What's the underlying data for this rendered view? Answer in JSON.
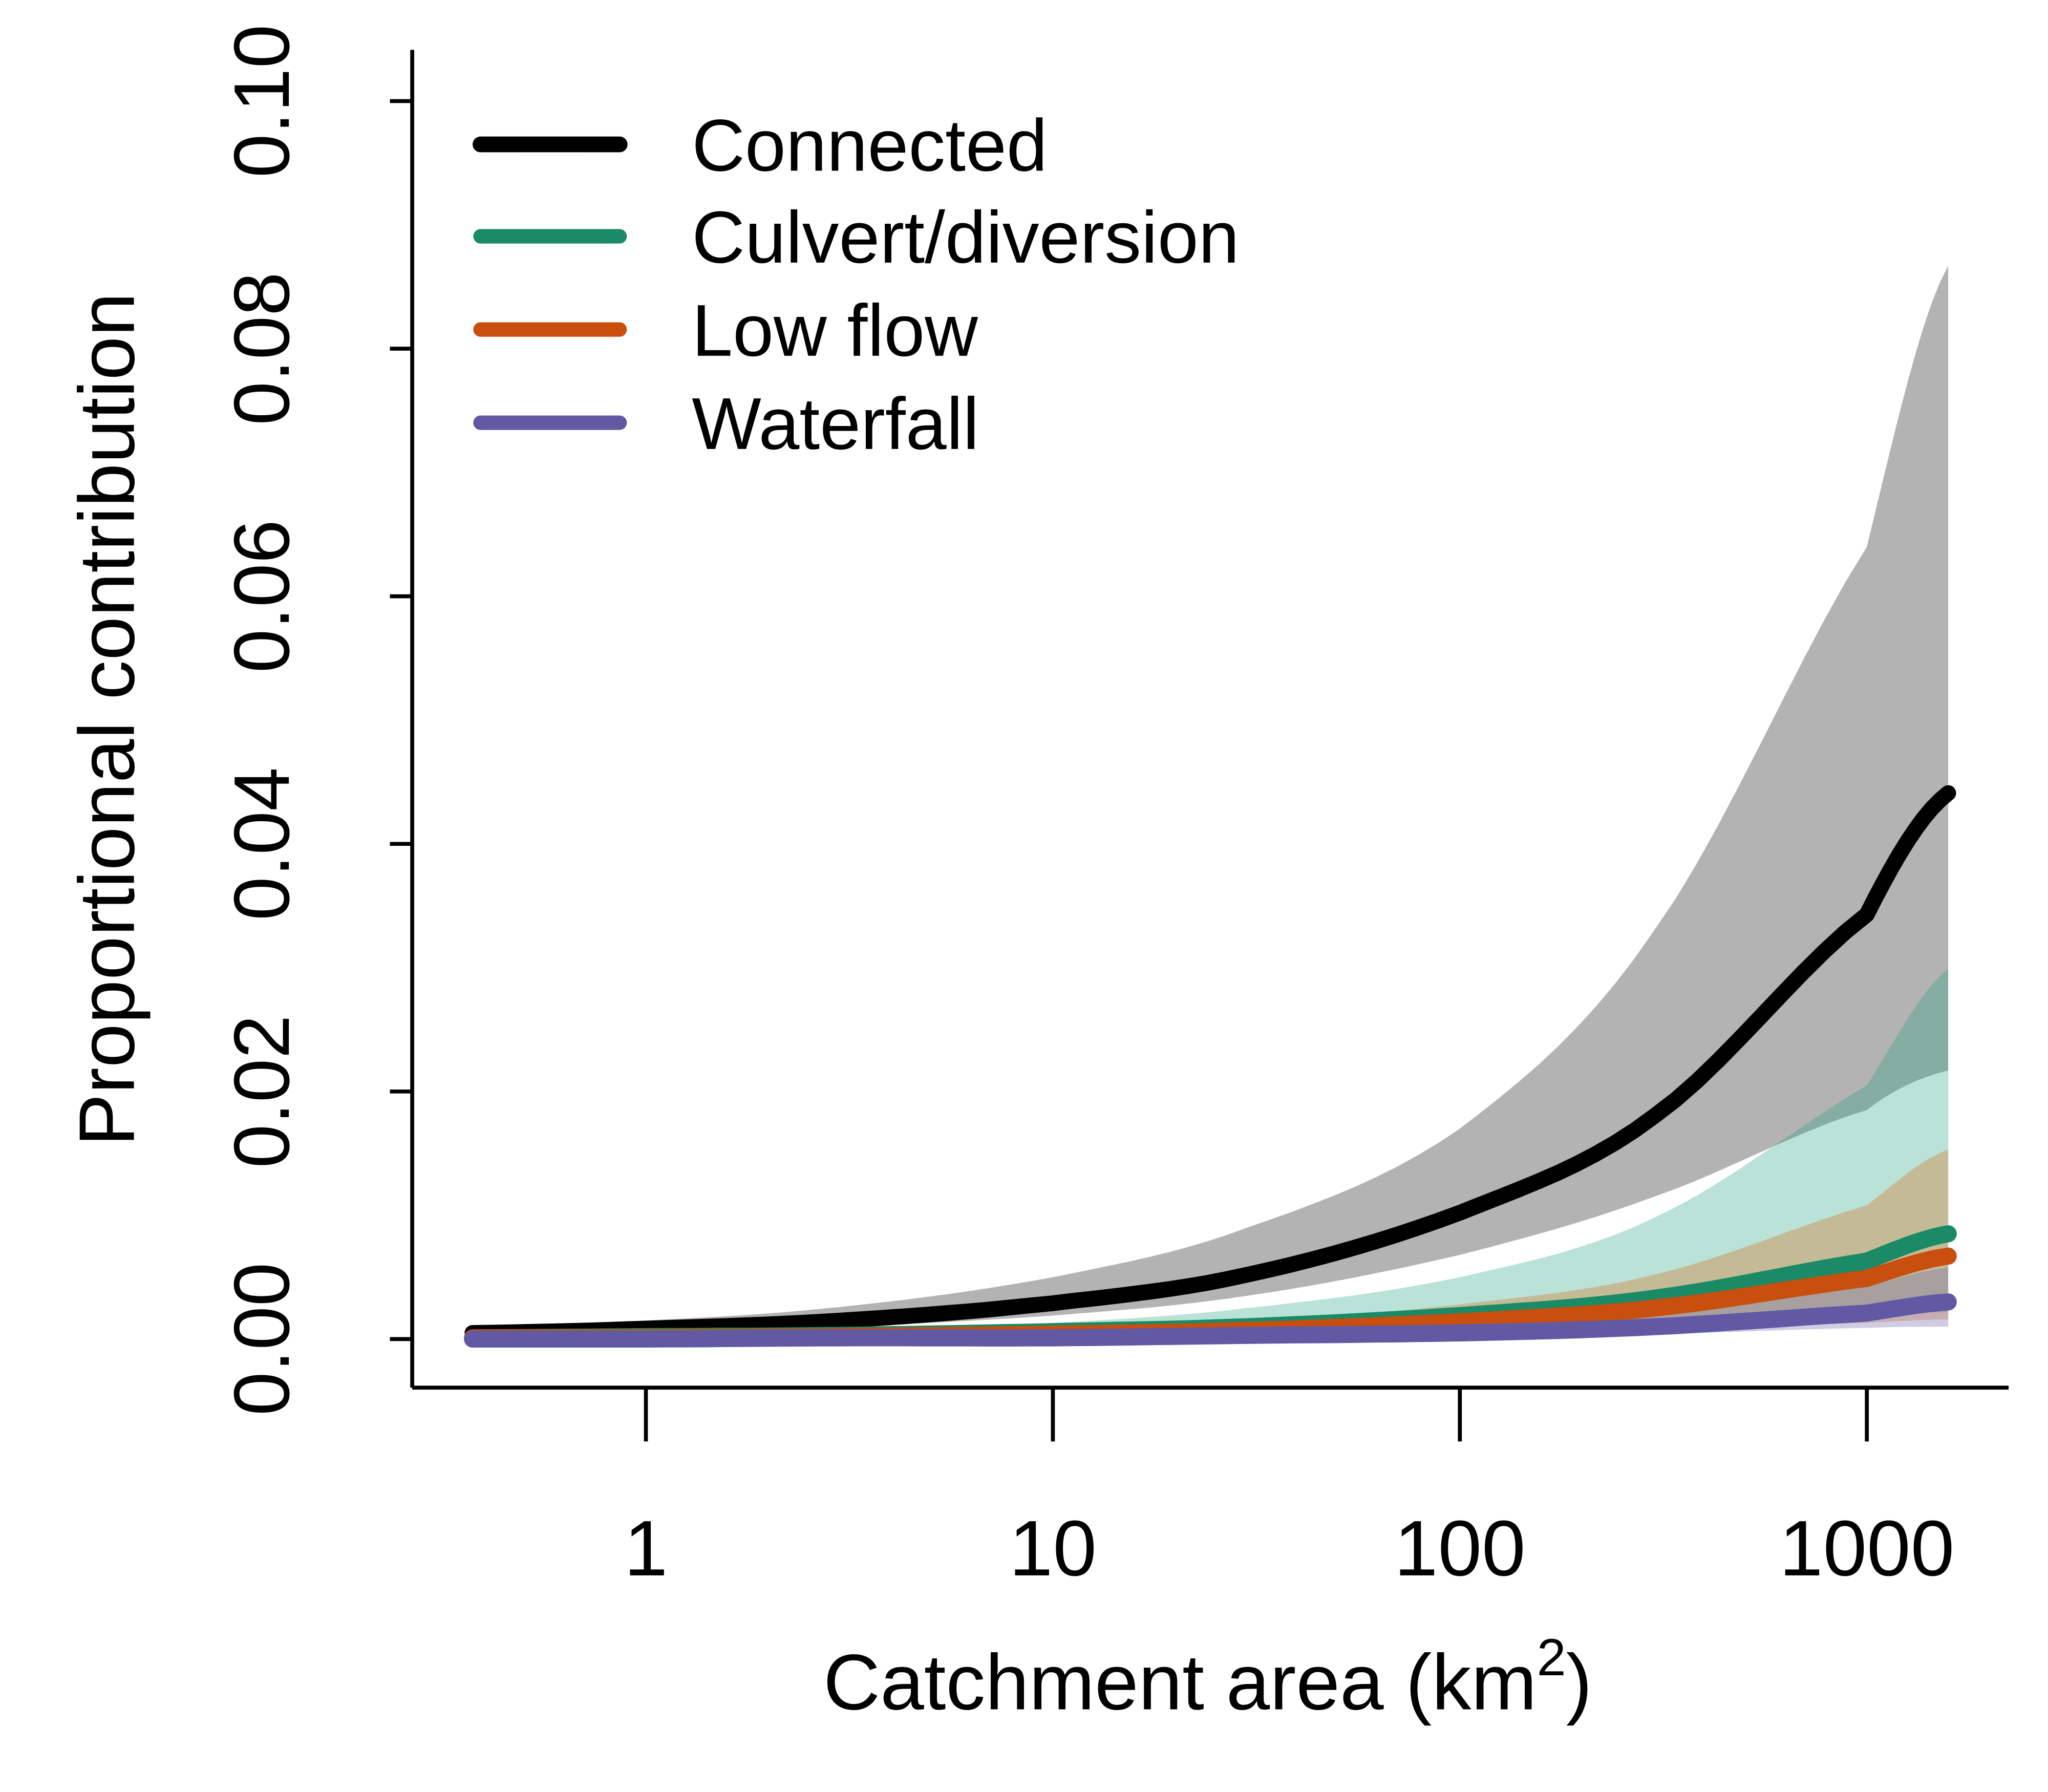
{
  "chart_data": {
    "type": "line",
    "title": "",
    "xlabel": "Catchment area (km",
    "xlabel_sup": "2",
    "xlabel_end": ")",
    "ylabel": "Proportional contribution",
    "xscale": "log",
    "xlim": [
      0.375,
      1585
    ],
    "ylim": [
      0,
      0.1
    ],
    "x_ticks": [
      1,
      10,
      100,
      1000
    ],
    "x_tick_labels": [
      "1",
      "10",
      "100",
      "1000"
    ],
    "y_ticks": [
      0,
      0.02,
      0.04,
      0.06,
      0.08,
      0.1
    ],
    "y_tick_labels": [
      "0.00",
      "0.02",
      "0.04",
      "0.06",
      "0.08",
      "0.10"
    ],
    "grid": false,
    "legend_position": "top-left",
    "x": [
      0.375,
      1,
      3,
      10,
      30,
      100,
      300,
      1000,
      1585
    ],
    "series": [
      {
        "name": "Connected",
        "color": "#000000",
        "band_color": "#b3b3b3",
        "band_opacity": 1,
        "values": [
          0.0005,
          0.00085,
          0.0015,
          0.0029,
          0.0052,
          0.0102,
          0.018,
          0.0343,
          0.0441
        ],
        "upper": [
          0.001,
          0.0015,
          0.0026,
          0.005,
          0.009,
          0.017,
          0.033,
          0.064,
          0.0867
        ],
        "lower": [
          0.0003,
          0.0005,
          0.001,
          0.0019,
          0.0035,
          0.0068,
          0.0115,
          0.0185,
          0.0217
        ]
      },
      {
        "name": "Culvert/diversion",
        "color": "#1b8a66",
        "band_color": "#1b9e77",
        "band_opacity": 0.3,
        "values": [
          0.0001,
          0.0002,
          0.0003,
          0.0006,
          0.001,
          0.0019,
          0.0033,
          0.0063,
          0.0085
        ],
        "upper": [
          0.0002,
          0.0004,
          0.0007,
          0.0013,
          0.0025,
          0.005,
          0.0098,
          0.0205,
          0.0299
        ],
        "lower": [
          0,
          0.0001,
          0.0001,
          0.0002,
          0.0004,
          0.0007,
          0.0011,
          0.0018,
          0.0022
        ]
      },
      {
        "name": "Low flow",
        "color": "#c94f0e",
        "band_color": "#d95f02",
        "band_opacity": 0.3,
        "values": [
          0.0001,
          0.0001,
          0.0002,
          0.0004,
          0.0007,
          0.0014,
          0.0025,
          0.0049,
          0.0067
        ],
        "upper": [
          0.0002,
          0.0003,
          0.0005,
          0.0008,
          0.0014,
          0.0028,
          0.0052,
          0.0108,
          0.0153
        ],
        "lower": [
          0,
          0,
          0.0001,
          0.0001,
          0.0002,
          0.0004,
          0.0007,
          0.0013,
          0.0016
        ]
      },
      {
        "name": "Waterfall",
        "color": "#6159a4",
        "band_color": "#7570b3",
        "band_opacity": 0.35,
        "values": [
          0,
          0,
          0.0001,
          0.0001,
          0.0003,
          0.0005,
          0.001,
          0.0021,
          0.003
        ],
        "upper": [
          0.0001,
          0.0001,
          0.0002,
          0.0003,
          0.0005,
          0.001,
          0.002,
          0.0042,
          0.0058
        ],
        "lower": [
          0,
          0,
          0,
          0,
          0.0001,
          0.0002,
          0.0004,
          0.0009,
          0.001
        ]
      }
    ]
  }
}
